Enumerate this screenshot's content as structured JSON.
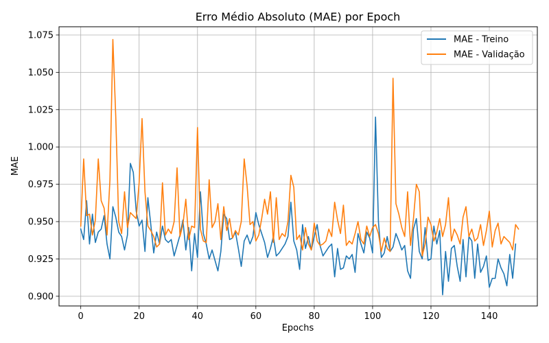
{
  "chart_data": {
    "type": "line",
    "title": "Erro Médio Absoluto (MAE) por Epoch",
    "xlabel": "Epochs",
    "ylabel": "MAE",
    "xlim": [
      -7.45,
      156.45
    ],
    "ylim": [
      0.8935,
      1.0805
    ],
    "xticks": [
      0,
      20,
      40,
      60,
      80,
      100,
      120,
      140
    ],
    "yticks": [
      0.9,
      0.925,
      0.95,
      0.975,
      1.0,
      1.025,
      1.05,
      1.075
    ],
    "ytick_labels": [
      "0.900",
      "0.925",
      "0.950",
      "0.975",
      "1.000",
      "1.025",
      "1.050",
      "1.075"
    ],
    "grid": true,
    "legend_position": "top-right",
    "series": [
      {
        "name": "MAE - Treino",
        "color": "#1f77b4",
        "values": [
          0.945,
          0.938,
          0.964,
          0.935,
          0.955,
          0.936,
          0.943,
          0.945,
          0.954,
          0.935,
          0.925,
          0.96,
          0.953,
          0.943,
          0.94,
          0.931,
          0.941,
          0.989,
          0.983,
          0.957,
          0.947,
          0.951,
          0.93,
          0.966,
          0.948,
          0.929,
          0.943,
          0.935,
          0.947,
          0.938,
          0.936,
          0.938,
          0.927,
          0.934,
          0.941,
          0.951,
          0.931,
          0.946,
          0.917,
          0.942,
          0.926,
          0.97,
          0.942,
          0.935,
          0.925,
          0.931,
          0.924,
          0.917,
          0.93,
          0.955,
          0.952,
          0.938,
          0.939,
          0.943,
          0.932,
          0.92,
          0.937,
          0.941,
          0.935,
          0.94,
          0.956,
          0.948,
          0.942,
          0.936,
          0.926,
          0.932,
          0.94,
          0.927,
          0.929,
          0.932,
          0.935,
          0.94,
          0.963,
          0.937,
          0.931,
          0.918,
          0.948,
          0.932,
          0.94,
          0.931,
          0.94,
          0.948,
          0.934,
          0.927,
          0.93,
          0.933,
          0.935,
          0.913,
          0.932,
          0.918,
          0.919,
          0.927,
          0.925,
          0.928,
          0.916,
          0.942,
          0.935,
          0.929,
          0.943,
          0.939,
          0.929,
          1.02,
          0.95,
          0.926,
          0.929,
          0.94,
          0.93,
          0.933,
          0.942,
          0.937,
          0.931,
          0.934,
          0.917,
          0.912,
          0.945,
          0.952,
          0.93,
          0.925,
          0.946,
          0.924,
          0.925,
          0.947,
          0.935,
          0.944,
          0.901,
          0.93,
          0.91,
          0.932,
          0.934,
          0.92,
          0.91,
          0.938,
          0.913,
          0.94,
          0.937,
          0.912,
          0.935,
          0.916,
          0.92,
          0.927,
          0.906,
          0.912,
          0.912,
          0.925,
          0.919,
          0.915,
          0.907,
          0.928,
          0.912,
          0.935
        ]
      },
      {
        "name": "MAE - Validação",
        "color": "#ff7f0e",
        "values": [
          0.947,
          0.992,
          0.954,
          0.955,
          0.941,
          0.951,
          0.992,
          0.964,
          0.959,
          0.941,
          0.978,
          1.072,
          1.02,
          0.95,
          0.942,
          0.97,
          0.946,
          0.956,
          0.954,
          0.952,
          0.976,
          1.019,
          0.97,
          0.947,
          0.944,
          0.94,
          0.933,
          0.935,
          0.976,
          0.941,
          0.945,
          0.942,
          0.95,
          0.986,
          0.94,
          0.948,
          0.965,
          0.938,
          0.947,
          0.946,
          1.013,
          0.945,
          0.937,
          0.936,
          0.978,
          0.946,
          0.95,
          0.962,
          0.938,
          0.96,
          0.944,
          0.952,
          0.939,
          0.944,
          0.941,
          0.95,
          0.992,
          0.974,
          0.948,
          0.95,
          0.937,
          0.941,
          0.952,
          0.965,
          0.955,
          0.97,
          0.936,
          0.966,
          0.938,
          0.942,
          0.94,
          0.95,
          0.981,
          0.973,
          0.938,
          0.941,
          0.931,
          0.946,
          0.935,
          0.931,
          0.949,
          0.937,
          0.934,
          0.935,
          0.937,
          0.945,
          0.94,
          0.963,
          0.951,
          0.942,
          0.961,
          0.934,
          0.937,
          0.935,
          0.942,
          0.95,
          0.938,
          0.935,
          0.947,
          0.94,
          0.946,
          0.948,
          0.942,
          0.93,
          0.939,
          0.932,
          0.93,
          1.046,
          0.962,
          0.955,
          0.946,
          0.94,
          0.97,
          0.934,
          0.952,
          0.975,
          0.97,
          0.927,
          0.935,
          0.953,
          0.948,
          0.937,
          0.943,
          0.952,
          0.94,
          0.948,
          0.966,
          0.937,
          0.945,
          0.941,
          0.935,
          0.953,
          0.96,
          0.94,
          0.945,
          0.937,
          0.939,
          0.948,
          0.934,
          0.944,
          0.957,
          0.933,
          0.944,
          0.949,
          0.935,
          0.94,
          0.938,
          0.936,
          0.931,
          0.948,
          0.945
        ]
      }
    ]
  }
}
